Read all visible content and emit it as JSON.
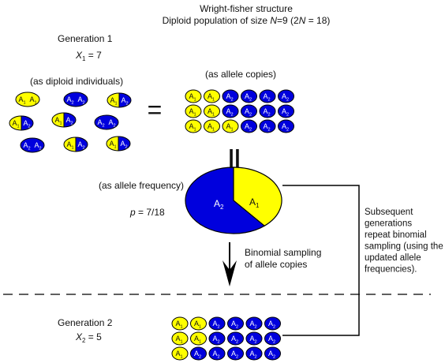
{
  "title": {
    "line1": "Wright-fisher structure",
    "line2_prefix": "Diploid population of size ",
    "N": "N",
    "line2_mid": "=9 (2",
    "line2_suffix": " = 18)"
  },
  "generation1": {
    "label": "Generation 1",
    "x_var": "X",
    "x_sub": "1",
    "x_val": " = 7"
  },
  "labels": {
    "diploid": "(as diploid individuals)",
    "copies": "(as allele copies)",
    "frequency": "(as allele frequency)",
    "p_var": "p",
    "p_val": " = 7/18",
    "binomial1": "Binomial sampling",
    "binomial2": "of allele copies"
  },
  "symbols": {
    "equals": "=",
    "parallel": "||"
  },
  "allele": {
    "letter": "A",
    "a1": "1",
    "a2": "2"
  },
  "colors": {
    "a1": "#ffff00",
    "a2": "#0000dd",
    "a1_text": "#111111",
    "a2_text": "#ffffff"
  },
  "pie": {
    "a1_fraction": 0.3889,
    "a1_label_sub": "1",
    "a2_label_sub": "2"
  },
  "side_note": [
    "Subsequent",
    "generations",
    "repeat binomial",
    "sampling (using the",
    "updated allele",
    "frequencies)."
  ],
  "generation2": {
    "label": "Generation 2",
    "x_var": "X",
    "x_sub": "2",
    "x_val": " = 5"
  },
  "diploids": [
    [
      "1",
      "1"
    ],
    [
      "2",
      "2"
    ],
    [
      "1",
      "2"
    ],
    [
      "1",
      "2"
    ],
    [
      "1",
      "2"
    ],
    [
      "2",
      "2"
    ],
    [
      "2",
      "2"
    ],
    [
      "1",
      "2"
    ],
    [
      "1",
      "2"
    ]
  ],
  "copies_gen1": [
    [
      "1",
      "1",
      "2",
      "2",
      "2",
      "2"
    ],
    [
      "1",
      "1",
      "2",
      "2",
      "2",
      "2"
    ],
    [
      "1",
      "1",
      "1",
      "2",
      "2",
      "2"
    ]
  ],
  "copies_gen2": [
    [
      "1",
      "1",
      "2",
      "2",
      "2",
      "2"
    ],
    [
      "1",
      "1",
      "2",
      "2",
      "2",
      "2"
    ],
    [
      "1",
      "2",
      "2",
      "2",
      "2",
      "2"
    ]
  ]
}
